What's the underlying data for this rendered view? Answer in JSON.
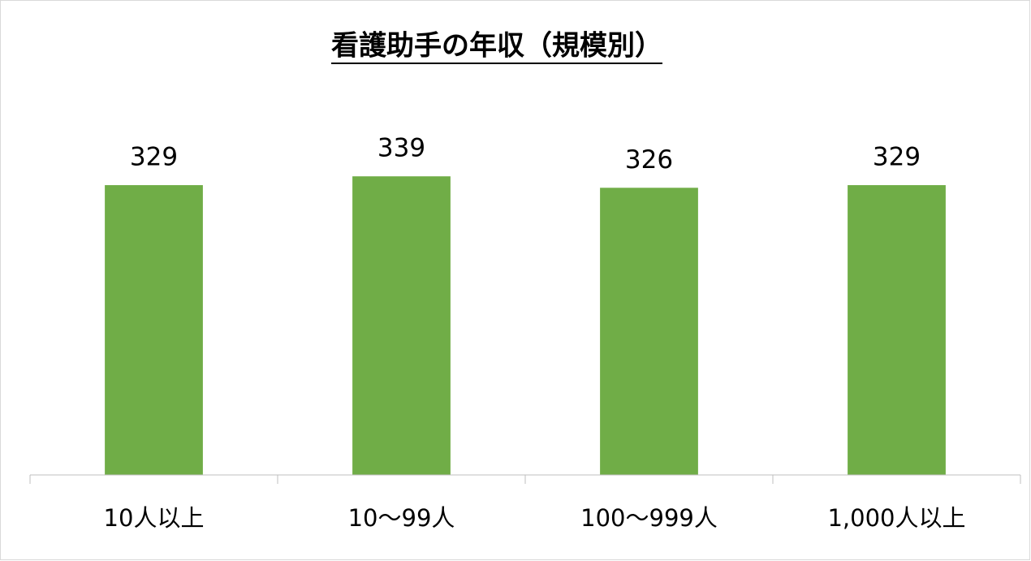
{
  "chart_data": {
    "type": "bar",
    "title": "看護助手の年収（規模別）",
    "categories": [
      "10人以上",
      "10～99人",
      "100～999人",
      "1,000人以上"
    ],
    "values": [
      329,
      339,
      326,
      329
    ],
    "color": "#70ad47",
    "ylim": [
      0,
      400
    ]
  }
}
